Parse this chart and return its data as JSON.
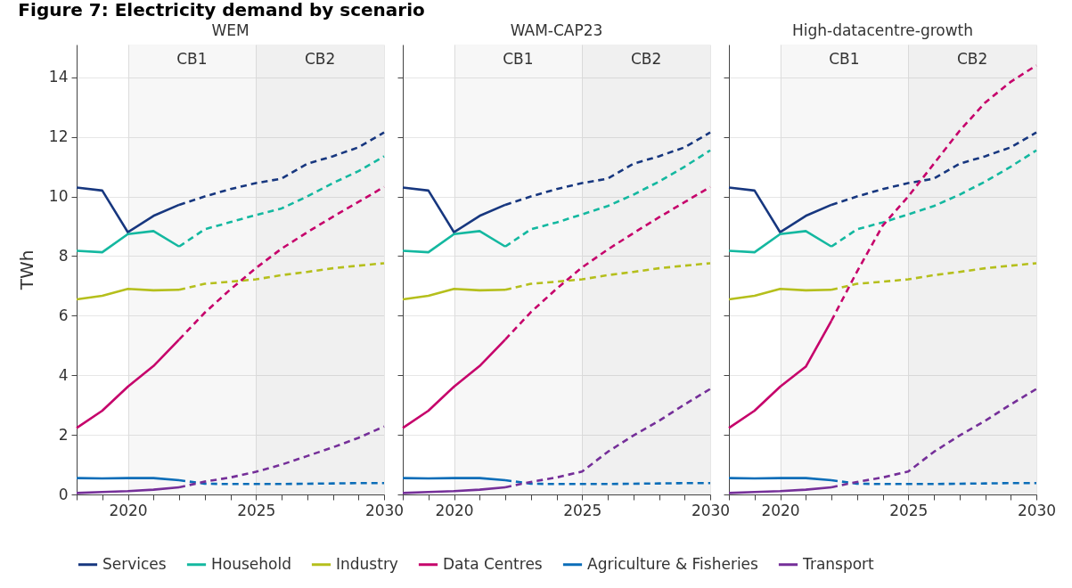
{
  "chart_data": [
    {
      "type": "line",
      "title": "Figure 7: Electricity demand by scenario",
      "subtitle": "WEM",
      "ylabel": "TWh",
      "xlim": [
        2018,
        2030
      ],
      "xticks": [
        {
          "value": 2018,
          "label": null
        },
        {
          "value": 2019,
          "label": null
        },
        2020,
        {
          "value": 2021,
          "label": null
        },
        {
          "value": 2022,
          "label": null
        },
        {
          "value": 2023,
          "label": null
        },
        {
          "value": 2024,
          "label": null
        },
        2025,
        {
          "value": 2026,
          "label": null
        },
        {
          "value": 2027,
          "label": null
        },
        {
          "value": 2028,
          "label": null
        },
        {
          "value": 2029,
          "label": null
        },
        2030
      ],
      "ylim": [
        0,
        15.1
      ],
      "yticks": [
        0,
        2,
        4,
        6,
        8,
        10,
        12,
        14
      ],
      "grid": true,
      "legend": "bottom",
      "line_style": "solid",
      "bands": [
        {
          "axis": "x",
          "from": 2020,
          "to": 2025,
          "label": "CB1",
          "color": "#f7f7f7"
        },
        {
          "axis": "x",
          "from": 2025,
          "to": 2030,
          "label": "CB2",
          "color": "#f0f0f0"
        }
      ],
      "series": [
        {
          "name": "Services",
          "color": "#17377f",
          "x": [
            2018,
            2019,
            2020,
            2021,
            2022
          ],
          "values": [
            10.3,
            10.2,
            8.8,
            9.35,
            9.72
          ]
        },
        {
          "name": "Household",
          "color": "#14b8a0",
          "x": [
            2018,
            2019,
            2020,
            2021,
            2022
          ],
          "values": [
            8.18,
            8.13,
            8.74,
            8.84,
            8.32
          ]
        },
        {
          "name": "Industry",
          "color": "#b5bf1c",
          "x": [
            2018,
            2019,
            2020,
            2021,
            2022
          ],
          "values": [
            6.55,
            6.67,
            6.9,
            6.85,
            6.87
          ]
        },
        {
          "name": "Data Centres",
          "color": "#c6036b",
          "x": [
            2018,
            2019,
            2020,
            2021,
            2022
          ],
          "values": [
            2.23,
            2.81,
            3.62,
            4.31,
            5.2
          ]
        },
        {
          "name": "Agriculture & Fisheries",
          "color": "#0b6db8",
          "x": [
            2018,
            2019,
            2020,
            2021,
            2022
          ],
          "values": [
            0.55,
            0.54,
            0.55,
            0.55,
            0.48
          ]
        },
        {
          "name": "Transport",
          "color": "#752f99",
          "x": [
            2018,
            2019,
            2020,
            2021,
            2022
          ],
          "values": [
            0.05,
            0.08,
            0.11,
            0.16,
            0.24
          ]
        },
        {
          "color": "#17377f",
          "line_style": "dashed",
          "x": [
            2022,
            2023,
            2024,
            2025,
            2026,
            2027,
            2028,
            2029,
            2030
          ],
          "values": [
            9.72,
            10.0,
            10.25,
            10.45,
            10.6,
            11.1,
            11.35,
            11.65,
            12.15
          ]
        },
        {
          "color": "#14b8a0",
          "line_style": "dashed",
          "x": [
            2022,
            2023,
            2024,
            2025,
            2026,
            2027,
            2028,
            2029,
            2030
          ],
          "values": [
            8.32,
            8.9,
            9.14,
            9.38,
            9.6,
            10.0,
            10.45,
            10.85,
            11.35
          ]
        },
        {
          "color": "#b5bf1c",
          "line_style": "dashed",
          "x": [
            2022,
            2023,
            2024,
            2025,
            2026,
            2027,
            2028,
            2029,
            2030
          ],
          "values": [
            6.87,
            7.07,
            7.14,
            7.22,
            7.36,
            7.47,
            7.59,
            7.68,
            7.76
          ]
        },
        {
          "color": "#c6036b",
          "line_style": "dashed",
          "x": [
            2022,
            2023,
            2024,
            2025,
            2026,
            2027,
            2028,
            2029,
            2030
          ],
          "values": [
            5.2,
            6.1,
            6.88,
            7.6,
            8.25,
            8.8,
            9.32,
            9.82,
            10.32
          ]
        },
        {
          "color": "#0b6db8",
          "line_style": "dashed",
          "x": [
            2022,
            2023,
            2024,
            2025,
            2026,
            2027,
            2028,
            2029,
            2030
          ],
          "values": [
            0.48,
            0.36,
            0.35,
            0.35,
            0.35,
            0.36,
            0.37,
            0.38,
            0.38
          ]
        },
        {
          "color": "#752f99",
          "line_style": "dashed",
          "x": [
            2022,
            2023,
            2024,
            2025,
            2026,
            2027,
            2028,
            2029,
            2030
          ],
          "values": [
            0.24,
            0.43,
            0.57,
            0.76,
            1.0,
            1.29,
            1.58,
            1.9,
            2.28
          ]
        }
      ]
    },
    {
      "type": "line",
      "subtitle": "WAM-CAP23",
      "xlim": [
        2018,
        2030
      ],
      "xticks": [
        {
          "value": 2018,
          "label": null
        },
        {
          "value": 2019,
          "label": null
        },
        2020,
        {
          "value": 2021,
          "label": null
        },
        {
          "value": 2022,
          "label": null
        },
        {
          "value": 2023,
          "label": null
        },
        {
          "value": 2024,
          "label": null
        },
        2025,
        {
          "value": 2026,
          "label": null
        },
        {
          "value": 2027,
          "label": null
        },
        {
          "value": 2028,
          "label": null
        },
        {
          "value": 2029,
          "label": null
        },
        2030
      ],
      "ylim": [
        0,
        15.1
      ],
      "yticks": [
        0,
        2,
        4,
        6,
        8,
        10,
        12,
        14
      ],
      "grid": true,
      "tick_labels": "x",
      "line_style": "solid",
      "bands": [
        {
          "axis": "x",
          "from": 2020,
          "to": 2025,
          "label": "CB1",
          "color": "#f7f7f7"
        },
        {
          "axis": "x",
          "from": 2025,
          "to": 2030,
          "label": "CB2",
          "color": "#f0f0f0"
        }
      ],
      "series": [
        {
          "name": "Services",
          "color": "#17377f",
          "x": [
            2018,
            2019,
            2020,
            2021,
            2022
          ],
          "values": [
            10.3,
            10.2,
            8.8,
            9.35,
            9.72
          ]
        },
        {
          "name": "Household",
          "color": "#14b8a0",
          "x": [
            2018,
            2019,
            2020,
            2021,
            2022
          ],
          "values": [
            8.18,
            8.13,
            8.74,
            8.84,
            8.32
          ]
        },
        {
          "name": "Industry",
          "color": "#b5bf1c",
          "x": [
            2018,
            2019,
            2020,
            2021,
            2022
          ],
          "values": [
            6.55,
            6.67,
            6.9,
            6.85,
            6.87
          ]
        },
        {
          "name": "Data Centres",
          "color": "#c6036b",
          "x": [
            2018,
            2019,
            2020,
            2021,
            2022
          ],
          "values": [
            2.23,
            2.81,
            3.62,
            4.31,
            5.2
          ]
        },
        {
          "name": "Agriculture & Fisheries",
          "color": "#0b6db8",
          "x": [
            2018,
            2019,
            2020,
            2021,
            2022
          ],
          "values": [
            0.55,
            0.54,
            0.55,
            0.55,
            0.48
          ]
        },
        {
          "name": "Transport",
          "color": "#752f99",
          "x": [
            2018,
            2019,
            2020,
            2021,
            2022
          ],
          "values": [
            0.05,
            0.08,
            0.11,
            0.16,
            0.24
          ]
        },
        {
          "color": "#17377f",
          "line_style": "dashed",
          "x": [
            2022,
            2023,
            2024,
            2025,
            2026,
            2027,
            2028,
            2029,
            2030
          ],
          "values": [
            9.72,
            10.0,
            10.25,
            10.45,
            10.6,
            11.1,
            11.35,
            11.65,
            12.15
          ]
        },
        {
          "color": "#14b8a0",
          "line_style": "dashed",
          "x": [
            2022,
            2023,
            2024,
            2025,
            2026,
            2027,
            2028,
            2029,
            2030
          ],
          "values": [
            8.32,
            8.9,
            9.13,
            9.4,
            9.68,
            10.06,
            10.5,
            11.0,
            11.55
          ]
        },
        {
          "color": "#b5bf1c",
          "line_style": "dashed",
          "x": [
            2022,
            2023,
            2024,
            2025,
            2026,
            2027,
            2028,
            2029,
            2030
          ],
          "values": [
            6.87,
            7.07,
            7.14,
            7.22,
            7.36,
            7.47,
            7.59,
            7.68,
            7.76
          ]
        },
        {
          "color": "#c6036b",
          "line_style": "dashed",
          "x": [
            2022,
            2023,
            2024,
            2025,
            2026,
            2027,
            2028,
            2029,
            2030
          ],
          "values": [
            5.2,
            6.12,
            6.9,
            7.62,
            8.22,
            8.77,
            9.3,
            9.81,
            10.32
          ]
        },
        {
          "color": "#0b6db8",
          "line_style": "dashed",
          "x": [
            2022,
            2023,
            2024,
            2025,
            2026,
            2027,
            2028,
            2029,
            2030
          ],
          "values": [
            0.48,
            0.36,
            0.35,
            0.35,
            0.35,
            0.36,
            0.37,
            0.38,
            0.38
          ]
        },
        {
          "color": "#752f99",
          "line_style": "dashed",
          "x": [
            2022,
            2023,
            2024,
            2025,
            2026,
            2027,
            2028,
            2029,
            2030
          ],
          "values": [
            0.24,
            0.42,
            0.57,
            0.77,
            1.43,
            1.98,
            2.47,
            3.02,
            3.54
          ]
        }
      ]
    },
    {
      "type": "line",
      "subtitle": "High-datacentre-growth",
      "xlim": [
        2018,
        2030
      ],
      "xticks": [
        {
          "value": 2018,
          "label": null
        },
        {
          "value": 2019,
          "label": null
        },
        2020,
        {
          "value": 2021,
          "label": null
        },
        {
          "value": 2022,
          "label": null
        },
        {
          "value": 2023,
          "label": null
        },
        {
          "value": 2024,
          "label": null
        },
        2025,
        {
          "value": 2026,
          "label": null
        },
        {
          "value": 2027,
          "label": null
        },
        {
          "value": 2028,
          "label": null
        },
        {
          "value": 2029,
          "label": null
        },
        2030
      ],
      "ylim": [
        0,
        15.1
      ],
      "yticks": [
        0,
        2,
        4,
        6,
        8,
        10,
        12,
        14
      ],
      "grid": true,
      "tick_labels": "x",
      "line_style": "solid",
      "bands": [
        {
          "axis": "x",
          "from": 2020,
          "to": 2025,
          "label": "CB1",
          "color": "#f7f7f7"
        },
        {
          "axis": "x",
          "from": 2025,
          "to": 2030,
          "label": "CB2",
          "color": "#f0f0f0"
        }
      ],
      "series": [
        {
          "name": "Services",
          "color": "#17377f",
          "x": [
            2018,
            2019,
            2020,
            2021,
            2022
          ],
          "values": [
            10.3,
            10.2,
            8.8,
            9.35,
            9.72
          ]
        },
        {
          "name": "Household",
          "color": "#14b8a0",
          "x": [
            2018,
            2019,
            2020,
            2021,
            2022
          ],
          "values": [
            8.18,
            8.13,
            8.74,
            8.84,
            8.32
          ]
        },
        {
          "name": "Industry",
          "color": "#b5bf1c",
          "x": [
            2018,
            2019,
            2020,
            2021,
            2022
          ],
          "values": [
            6.55,
            6.67,
            6.9,
            6.85,
            6.87
          ]
        },
        {
          "name": "Data Centres",
          "color": "#c6036b",
          "x": [
            2018,
            2019,
            2020,
            2021,
            2022
          ],
          "values": [
            2.23,
            2.81,
            3.62,
            4.29,
            5.83
          ]
        },
        {
          "name": "Agriculture & Fisheries",
          "color": "#0b6db8",
          "x": [
            2018,
            2019,
            2020,
            2021,
            2022
          ],
          "values": [
            0.55,
            0.54,
            0.55,
            0.55,
            0.48
          ]
        },
        {
          "name": "Transport",
          "color": "#752f99",
          "x": [
            2018,
            2019,
            2020,
            2021,
            2022
          ],
          "values": [
            0.05,
            0.08,
            0.11,
            0.16,
            0.24
          ]
        },
        {
          "color": "#17377f",
          "line_style": "dashed",
          "x": [
            2022,
            2023,
            2024,
            2025,
            2026,
            2027,
            2028,
            2029,
            2030
          ],
          "values": [
            9.72,
            10.0,
            10.25,
            10.45,
            10.6,
            11.1,
            11.35,
            11.65,
            12.15
          ]
        },
        {
          "color": "#14b8a0",
          "line_style": "dashed",
          "x": [
            2022,
            2023,
            2024,
            2025,
            2026,
            2027,
            2028,
            2029,
            2030
          ],
          "values": [
            8.32,
            8.9,
            9.13,
            9.4,
            9.68,
            10.06,
            10.5,
            11.0,
            11.55
          ]
        },
        {
          "color": "#b5bf1c",
          "line_style": "dashed",
          "x": [
            2022,
            2023,
            2024,
            2025,
            2026,
            2027,
            2028,
            2029,
            2030
          ],
          "values": [
            6.87,
            7.07,
            7.14,
            7.22,
            7.36,
            7.47,
            7.59,
            7.68,
            7.76
          ]
        },
        {
          "color": "#c6036b",
          "line_style": "dashed",
          "x": [
            2022,
            2023,
            2024,
            2025,
            2026,
            2027,
            2028,
            2029,
            2030
          ],
          "values": [
            5.83,
            7.48,
            9.02,
            10.0,
            11.1,
            12.2,
            13.15,
            13.85,
            14.4
          ]
        },
        {
          "color": "#0b6db8",
          "line_style": "dashed",
          "x": [
            2022,
            2023,
            2024,
            2025,
            2026,
            2027,
            2028,
            2029,
            2030
          ],
          "values": [
            0.48,
            0.36,
            0.35,
            0.35,
            0.35,
            0.36,
            0.37,
            0.38,
            0.38
          ]
        },
        {
          "color": "#752f99",
          "line_style": "dashed",
          "x": [
            2022,
            2023,
            2024,
            2025,
            2026,
            2027,
            2028,
            2029,
            2030
          ],
          "values": [
            0.24,
            0.42,
            0.57,
            0.77,
            1.43,
            1.98,
            2.47,
            3.02,
            3.54
          ]
        }
      ]
    }
  ]
}
